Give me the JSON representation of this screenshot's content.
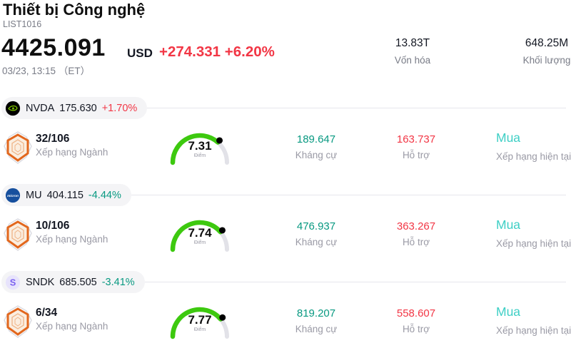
{
  "header": {
    "title": "Thiết bị Công nghệ",
    "list_id": "LIST1016",
    "price": "4425.091",
    "currency": "USD",
    "change": "+274.331 +6.20%",
    "change_color": "#f23645",
    "datetime": "03/23, 13:15 （ET）",
    "stats": [
      {
        "value": "13.83T",
        "label": "Vốn hóa"
      },
      {
        "value": "648.25M",
        "label": "Khối lượng"
      }
    ]
  },
  "columns": {
    "rank_label": "Xếp hạng Ngành",
    "score_label": "Điểm",
    "resistance_label": "Kháng cự",
    "support_label": "Hỗ trợ",
    "rating_label": "Xếp hạng hiện tại"
  },
  "colors": {
    "positive": "#f23645",
    "negative": "#089981",
    "resistance": "#089981",
    "support": "#f23645",
    "rating": "#3ecfc5",
    "gauge_green": "#3dc90f",
    "gauge_track": "#e2e2e8",
    "gauge_dot": "#000000"
  },
  "gauge_max": 10,
  "stocks": [
    {
      "symbol": "NVDA",
      "last": "175.630",
      "change": "+1.70%",
      "change_color": "#f23645",
      "rank": "32/106",
      "score": 7.31,
      "score_text": "7.31",
      "resistance": "189.647",
      "support": "163.737",
      "rating": "Mua"
    },
    {
      "symbol": "MU",
      "last": "404.115",
      "change": "-4.44%",
      "change_color": "#089981",
      "rank": "10/106",
      "score": 7.74,
      "score_text": "7.74",
      "resistance": "476.937",
      "support": "363.267",
      "rating": "Mua"
    },
    {
      "symbol": "SNDK",
      "last": "685.505",
      "change": "-3.41%",
      "change_color": "#089981",
      "rank": "6/34",
      "score": 7.77,
      "score_text": "7.77",
      "resistance": "819.207",
      "support": "558.607",
      "rating": "Mua"
    }
  ]
}
